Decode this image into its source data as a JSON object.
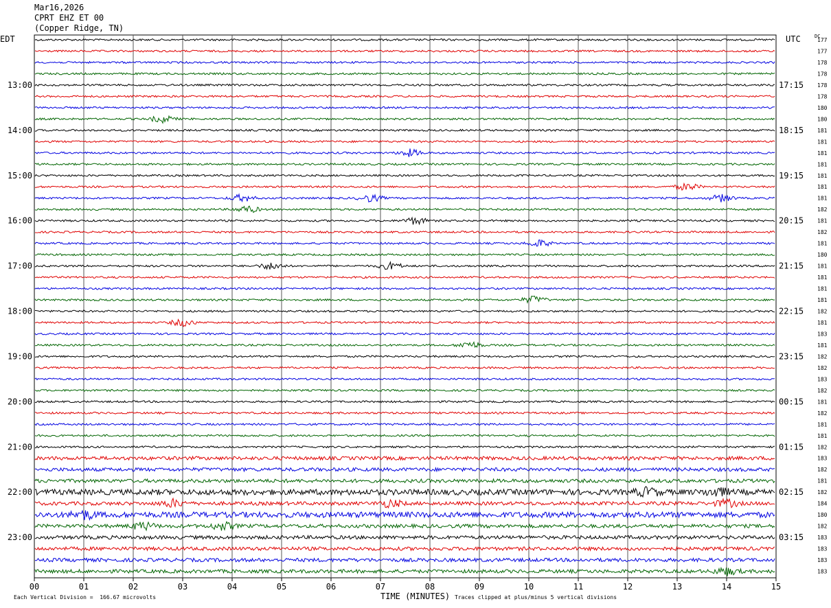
{
  "header": {
    "date": "Mar16,2026",
    "station": "CPRT EHZ ET 00",
    "location": "(Copper Ridge, TN)"
  },
  "chart_data": {
    "type": "line",
    "title": "",
    "xlabel": "TIME (MINUTES)",
    "xlim": [
      0,
      15
    ],
    "x_ticks": [
      "00",
      "01",
      "02",
      "03",
      "04",
      "05",
      "06",
      "07",
      "08",
      "09",
      "10",
      "11",
      "12",
      "13",
      "14",
      "15"
    ],
    "left_axis_label": "EDT",
    "right_axis_label": "UTC",
    "dc_label": "DC",
    "left_hour_labels": [
      "13:00",
      "14:00",
      "15:00",
      "16:00",
      "17:00",
      "18:00",
      "19:00",
      "20:00",
      "21:00",
      "22:00",
      "23:00"
    ],
    "right_hour_labels": [
      "17:15",
      "18:15",
      "19:15",
      "20:15",
      "21:15",
      "22:15",
      "23:15",
      "00:15",
      "01:15",
      "02:15",
      "03:15"
    ],
    "trace_colors": [
      "#000000",
      "#e00000",
      "#0000e0",
      "#006400"
    ],
    "dc_offsets": [
      177,
      177,
      178,
      178,
      178,
      178,
      180,
      180,
      181,
      181,
      181,
      181,
      181,
      181,
      181,
      182,
      181,
      182,
      181,
      180,
      181,
      181,
      181,
      181,
      182,
      181,
      183,
      181,
      182,
      182,
      183,
      182,
      181,
      182,
      181,
      181,
      182,
      183,
      182,
      181,
      182,
      184,
      180,
      182,
      183,
      183,
      183,
      183
    ],
    "grid": true,
    "footer_left": "Each Vertical Division =  166.67 microvolts",
    "footer_right": "Traces clipped at plus/minus 5 vertical divisions"
  }
}
